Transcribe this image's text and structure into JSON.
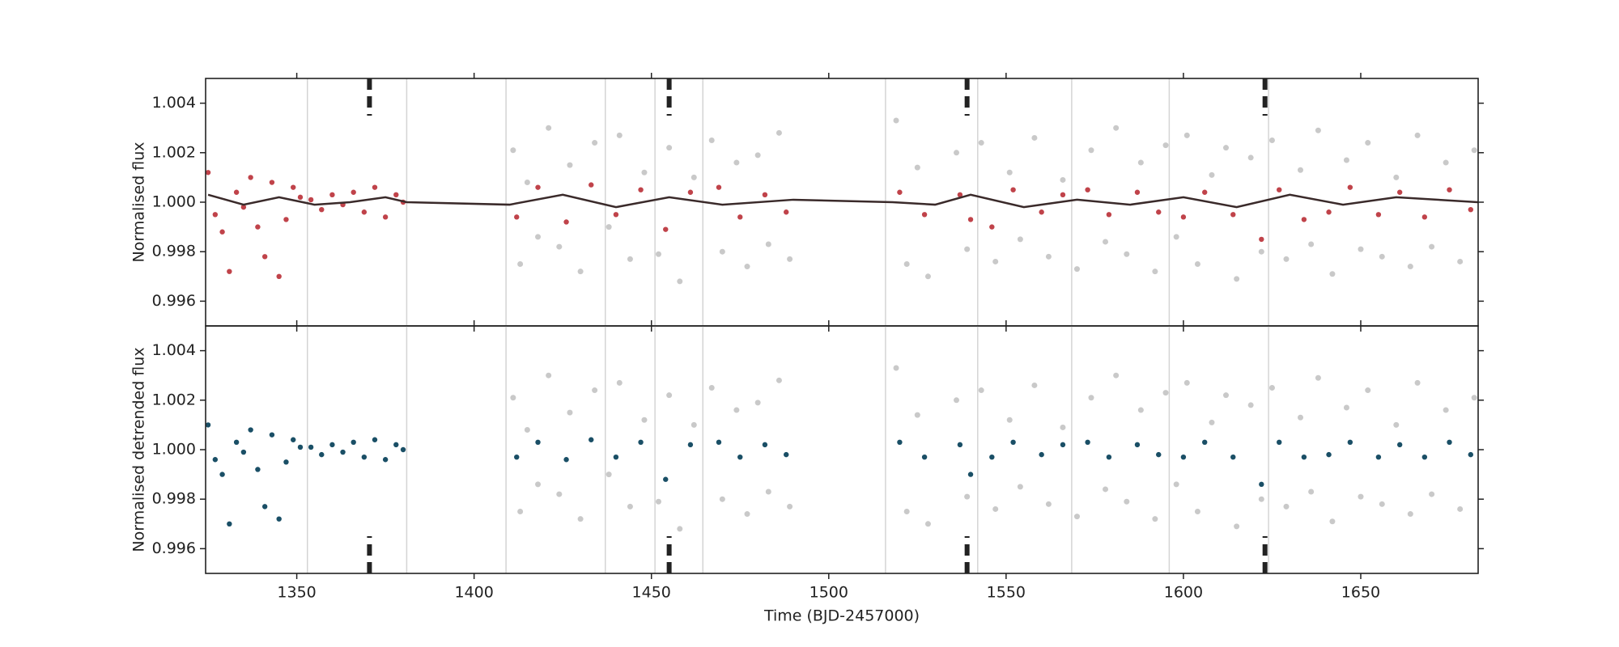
{
  "chart_data": [
    {
      "type": "scatter",
      "ylabel": "Normalised flux",
      "xlim": [
        1324.3,
        1683.1
      ],
      "ylim": [
        0.995,
        1.005
      ],
      "xticks": [
        1350,
        1400,
        1450,
        1500,
        1550,
        1600,
        1650
      ],
      "yticks": [
        0.996,
        0.998,
        {
          "value": 1.0,
          "label": "1.000"
        },
        1.002,
        1.004
      ],
      "vlines": [
        1353,
        1381,
        1409,
        1437,
        1451,
        1464.5,
        1516,
        1542,
        1568.5,
        1596,
        1624
      ],
      "transits": [
        1370.5,
        1455,
        1539,
        1623
      ],
      "series": [
        {
          "color": "#c0c0c0",
          "x": [
            1411,
            1413,
            1415,
            1418,
            1421,
            1424,
            1427,
            1430,
            1434,
            1438,
            1441,
            1444,
            1448,
            1452,
            1455,
            1458,
            1462,
            1467,
            1470,
            1474,
            1477,
            1480,
            1483,
            1486,
            1489,
            1519,
            1522,
            1525,
            1528,
            1536,
            1539,
            1543,
            1547,
            1551,
            1554,
            1558,
            1562,
            1566,
            1570,
            1574,
            1578,
            1581,
            1584,
            1588,
            1592,
            1595,
            1598,
            1601,
            1604,
            1608,
            1612,
            1615,
            1619,
            1622,
            1625,
            1629,
            1633,
            1636,
            1638,
            1642,
            1646,
            1650,
            1652,
            1656,
            1660,
            1664,
            1666,
            1670,
            1674,
            1678,
            1682
          ],
          "values": [
            1.0021,
            0.9975,
            1.0008,
            0.9986,
            1.003,
            0.9982,
            1.0015,
            0.9972,
            1.0024,
            0.999,
            1.0027,
            0.9977,
            1.0012,
            0.9979,
            1.0022,
            0.9968,
            1.001,
            1.0025,
            0.998,
            1.0016,
            0.9974,
            1.0019,
            0.9983,
            1.0028,
            0.9977,
            1.0033,
            0.9975,
            1.0014,
            0.997,
            1.002,
            0.9981,
            1.0024,
            0.9976,
            1.0012,
            0.9985,
            1.0026,
            0.9978,
            1.0009,
            0.9973,
            1.0021,
            0.9984,
            1.003,
            0.9979,
            1.0016,
            0.9972,
            1.0023,
            0.9986,
            1.0027,
            0.9975,
            1.0011,
            1.0022,
            0.9969,
            1.0018,
            0.998,
            1.0025,
            0.9977,
            1.0013,
            0.9983,
            1.0029,
            0.9971,
            1.0017,
            0.9981,
            1.0024,
            0.9978,
            1.001,
            0.9974,
            1.0027,
            0.9982,
            1.0016,
            0.9976,
            1.0021
          ]
        },
        {
          "color": "#c0434a",
          "x": [
            1325,
            1327,
            1329,
            1331,
            1333,
            1335,
            1337,
            1339,
            1341,
            1343,
            1345,
            1347,
            1349,
            1351,
            1354,
            1357,
            1360,
            1363,
            1366,
            1369,
            1372,
            1375,
            1378,
            1380,
            1412,
            1418,
            1426,
            1433,
            1440,
            1447,
            1454,
            1461,
            1469,
            1475,
            1482,
            1488,
            1520,
            1527,
            1537,
            1540,
            1546,
            1552,
            1560,
            1566,
            1573,
            1579,
            1587,
            1593,
            1600,
            1606,
            1614,
            1622,
            1627,
            1634,
            1641,
            1647,
            1655,
            1661,
            1668,
            1675,
            1681
          ],
          "values": [
            1.0012,
            0.9995,
            0.9988,
            0.9972,
            1.0004,
            0.9998,
            1.001,
            0.999,
            0.9978,
            1.0008,
            0.997,
            0.9993,
            1.0006,
            1.0002,
            1.0001,
            0.9997,
            1.0003,
            0.9999,
            1.0004,
            0.9996,
            1.0006,
            0.9994,
            1.0003,
            1.0,
            0.9994,
            1.0006,
            0.9992,
            1.0007,
            0.9995,
            1.0005,
            0.9989,
            1.0004,
            1.0006,
            0.9994,
            1.0003,
            0.9996,
            1.0004,
            0.9995,
            1.0003,
            0.9993,
            0.999,
            1.0005,
            0.9996,
            1.0003,
            1.0005,
            0.9995,
            1.0004,
            0.9996,
            0.9994,
            1.0004,
            0.9995,
            0.9985,
            1.0005,
            0.9993,
            0.9996,
            1.0006,
            0.9995,
            1.0004,
            0.9994,
            1.0005,
            0.9997
          ]
        },
        {
          "color": "#3a2a2a",
          "line": true,
          "x": [
            1325,
            1335,
            1345,
            1355,
            1365,
            1375,
            1381,
            1410,
            1425,
            1440,
            1455,
            1470,
            1490,
            1518,
            1530,
            1540,
            1555,
            1570,
            1585,
            1600,
            1615,
            1630,
            1645,
            1660,
            1683
          ],
          "values": [
            1.0003,
            0.9999,
            1.0002,
            0.9999,
            1.0,
            1.0002,
            1.0,
            0.9999,
            1.0003,
            0.9998,
            1.0002,
            0.9999,
            1.0001,
            1.0,
            0.9999,
            1.0003,
            0.9998,
            1.0001,
            0.9999,
            1.0002,
            0.9998,
            1.0003,
            0.9999,
            1.0002,
            1.0
          ]
        }
      ]
    },
    {
      "type": "scatter",
      "ylabel": "Normalised detrended flux",
      "xlabel": "Time (BJD-2457000)",
      "xlim": [
        1324.3,
        1683.1
      ],
      "ylim": [
        0.995,
        1.005
      ],
      "xticks": [
        1350,
        1400,
        1450,
        1500,
        1550,
        1600,
        1650
      ],
      "yticks": [
        0.996,
        0.998,
        {
          "value": 1.0,
          "label": "1.000"
        },
        1.002,
        1.004
      ],
      "vlines": [
        1353,
        1381,
        1409,
        1437,
        1451,
        1464.5,
        1516,
        1542,
        1568.5,
        1596,
        1624
      ],
      "transits": [
        1370.5,
        1455,
        1539,
        1623
      ],
      "series": [
        {
          "color": "#c0c0c0",
          "x": [
            1411,
            1413,
            1415,
            1418,
            1421,
            1424,
            1427,
            1430,
            1434,
            1438,
            1441,
            1444,
            1448,
            1452,
            1455,
            1458,
            1462,
            1467,
            1470,
            1474,
            1477,
            1480,
            1483,
            1486,
            1489,
            1519,
            1522,
            1525,
            1528,
            1536,
            1539,
            1543,
            1547,
            1551,
            1554,
            1558,
            1562,
            1566,
            1570,
            1574,
            1578,
            1581,
            1584,
            1588,
            1592,
            1595,
            1598,
            1601,
            1604,
            1608,
            1612,
            1615,
            1619,
            1622,
            1625,
            1629,
            1633,
            1636,
            1638,
            1642,
            1646,
            1650,
            1652,
            1656,
            1660,
            1664,
            1666,
            1670,
            1674,
            1678,
            1682
          ],
          "values": [
            1.0021,
            0.9975,
            1.0008,
            0.9986,
            1.003,
            0.9982,
            1.0015,
            0.9972,
            1.0024,
            0.999,
            1.0027,
            0.9977,
            1.0012,
            0.9979,
            1.0022,
            0.9968,
            1.001,
            1.0025,
            0.998,
            1.0016,
            0.9974,
            1.0019,
            0.9983,
            1.0028,
            0.9977,
            1.0033,
            0.9975,
            1.0014,
            0.997,
            1.002,
            0.9981,
            1.0024,
            0.9976,
            1.0012,
            0.9985,
            1.0026,
            0.9978,
            1.0009,
            0.9973,
            1.0021,
            0.9984,
            1.003,
            0.9979,
            1.0016,
            0.9972,
            1.0023,
            0.9986,
            1.0027,
            0.9975,
            1.0011,
            1.0022,
            0.9969,
            1.0018,
            0.998,
            1.0025,
            0.9977,
            1.0013,
            0.9983,
            1.0029,
            0.9971,
            1.0017,
            0.9981,
            1.0024,
            0.9978,
            1.001,
            0.9974,
            1.0027,
            0.9982,
            1.0016,
            0.9976,
            1.0021
          ]
        },
        {
          "color": "#1a4f66",
          "x": [
            1325,
            1327,
            1329,
            1331,
            1333,
            1335,
            1337,
            1339,
            1341,
            1343,
            1345,
            1347,
            1349,
            1351,
            1354,
            1357,
            1360,
            1363,
            1366,
            1369,
            1372,
            1375,
            1378,
            1380,
            1412,
            1418,
            1426,
            1433,
            1440,
            1447,
            1454,
            1461,
            1469,
            1475,
            1482,
            1488,
            1520,
            1527,
            1537,
            1540,
            1546,
            1552,
            1560,
            1566,
            1573,
            1579,
            1587,
            1593,
            1600,
            1606,
            1614,
            1622,
            1627,
            1634,
            1641,
            1647,
            1655,
            1661,
            1668,
            1675,
            1681
          ],
          "values": [
            1.001,
            0.9996,
            0.999,
            0.997,
            1.0003,
            0.9999,
            1.0008,
            0.9992,
            0.9977,
            1.0006,
            0.9972,
            0.9995,
            1.0004,
            1.0001,
            1.0001,
            0.9998,
            1.0002,
            0.9999,
            1.0003,
            0.9997,
            1.0004,
            0.9996,
            1.0002,
            1.0,
            0.9997,
            1.0003,
            0.9996,
            1.0004,
            0.9997,
            1.0003,
            0.9988,
            1.0002,
            1.0003,
            0.9997,
            1.0002,
            0.9998,
            1.0003,
            0.9997,
            1.0002,
            0.999,
            0.9997,
            1.0003,
            0.9998,
            1.0002,
            1.0003,
            0.9997,
            1.0002,
            0.9998,
            0.9997,
            1.0003,
            0.9997,
            0.9986,
            1.0003,
            0.9997,
            0.9998,
            1.0003,
            0.9997,
            1.0002,
            0.9997,
            1.0003,
            0.9998
          ]
        }
      ]
    }
  ]
}
